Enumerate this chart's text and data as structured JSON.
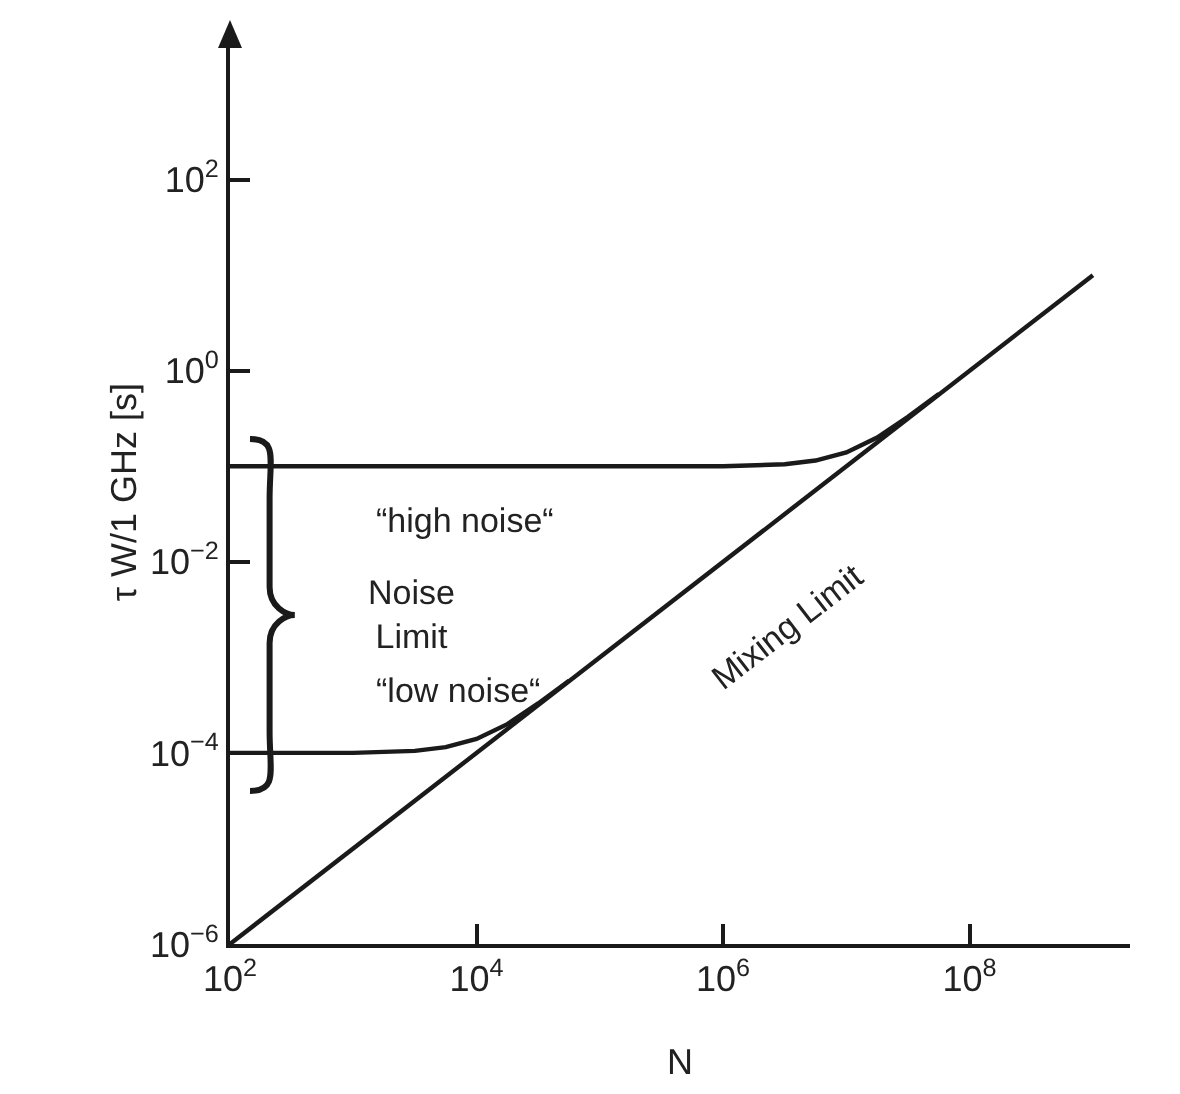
{
  "chart_data": {
    "type": "line",
    "xlabel": "N",
    "ylabel": "τ W/1 GHz [s]",
    "log": "xy",
    "marker": "none",
    "line_style": "solid",
    "xlim": [
      100,
      2000000000
    ],
    "ylim": [
      1e-06,
      2900
    ],
    "xticks": [
      {
        "value": 100,
        "label": "10$^{2}$"
      },
      {
        "value": 10000,
        "label": "10$^{4}$"
      },
      {
        "value": 1000000,
        "label": "10$^{6}$"
      },
      {
        "value": 100000000,
        "label": "10$^{8}$"
      }
    ],
    "yticks": [
      {
        "value": 1e-06,
        "label": "10$^{−6}$"
      },
      {
        "value": 0.0001,
        "label": "10$^{−4}$"
      },
      {
        "value": 0.01,
        "label": "10$^{−2}$"
      },
      {
        "value": 1,
        "label": "10$^{0}$"
      },
      {
        "value": 100,
        "label": "10$^{2}$"
      }
    ],
    "series": [
      {
        "color": "#1a1a1a",
        "x": [
          100,
          1000000000
        ],
        "values": [
          1e-06,
          10
        ]
      },
      {
        "color": "#1a1a1a",
        "x": [
          100,
          1000000,
          3162278,
          5623413,
          10000000,
          17782794,
          31622777,
          56234133
        ],
        "values": [
          0.1,
          0.1,
          0.105,
          0.115,
          0.14,
          0.2,
          0.33,
          0.57
        ]
      },
      {
        "color": "#1a1a1a",
        "x": [
          100,
          1000,
          3162,
          5623,
          10000,
          17783,
          31623,
          56234
        ],
        "values": [
          0.0001,
          0.0001,
          0.000105,
          0.000115,
          0.00014,
          0.0002,
          0.00033,
          0.00057
        ]
      }
    ],
    "annotations": [
      "“high noise“",
      "Noise\nLimit",
      "“low noise“",
      "Mixing Limit"
    ]
  }
}
